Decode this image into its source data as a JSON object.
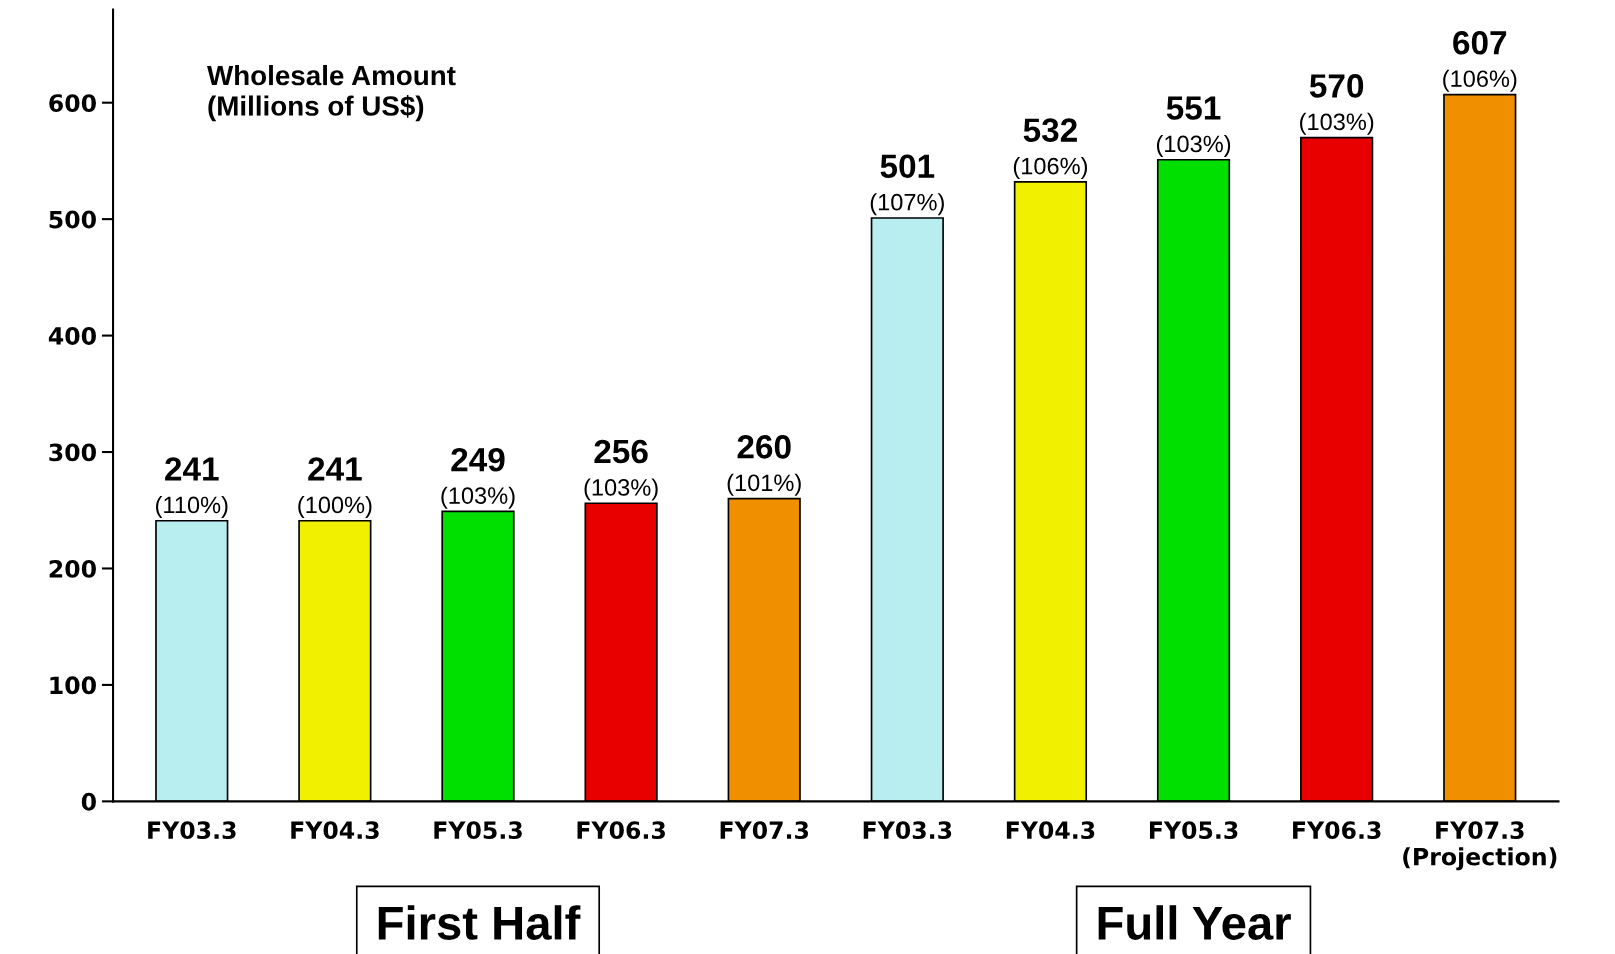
{
  "chart_data": {
    "type": "bar",
    "ylabel": "Wholesale Amount\n(Millions of US$)",
    "categories": [
      "FY03.3",
      "FY04.3",
      "FY05.3",
      "FY06.3",
      "FY07.3",
      "FY03.3",
      "FY04.3",
      "FY05.3",
      "FY06.3",
      "FY07.3\n(Projection)"
    ],
    "values": [
      241,
      241,
      249,
      256,
      260,
      501,
      532,
      551,
      570,
      607
    ],
    "colors": [
      "#b8eef0",
      "#f0f000",
      "#00e000",
      "#e80000",
      "#f09000",
      "#b8eef0",
      "#f0f000",
      "#00e000",
      "#e80000",
      "#f09000"
    ],
    "value_labels": [
      "241\n(110%)",
      "241\n(100%)",
      "249\n(103%)",
      "256\n(103%)",
      "260\n(101%)",
      "501\n(107%)",
      "532\n(106%)",
      "551\n(103%)",
      "570\n(103%)",
      "607\n(106%)"
    ],
    "annotations": [
      "First Half",
      "Full Year"
    ],
    "ylim": [
      0,
      680
    ],
    "yticks": [
      0,
      100,
      200,
      300,
      400,
      500,
      600
    ],
    "grid": false,
    "legend": false
  }
}
